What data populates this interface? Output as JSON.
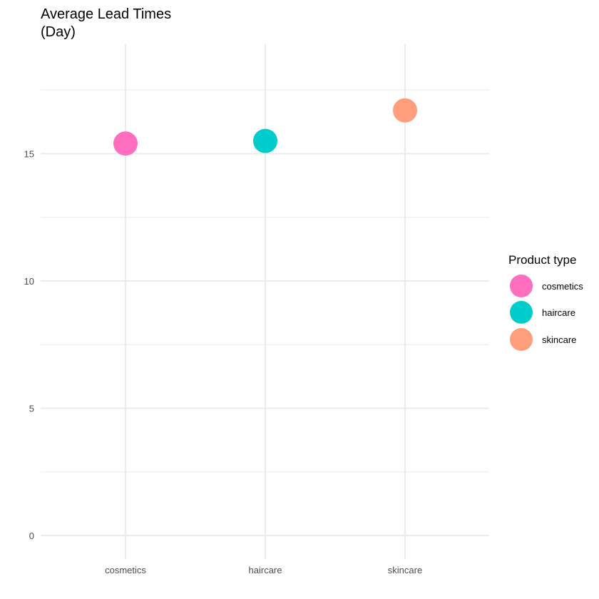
{
  "chart_data": {
    "type": "scatter",
    "title_lines": [
      "Average Lead Times",
      "(Day)"
    ],
    "xlabel": "",
    "ylabel": "",
    "categories": [
      "cosmetics",
      "haircare",
      "skincare"
    ],
    "values": [
      15.4,
      15.5,
      16.7
    ],
    "ylim": [
      -0.6,
      18.4
    ],
    "y_ticks": [
      0,
      5,
      10,
      15
    ],
    "grid": true,
    "legend": {
      "title": "Product type",
      "position": "right",
      "entries": [
        "cosmetics",
        "haircare",
        "skincare"
      ]
    },
    "colors": {
      "cosmetics": "#ff6ebe",
      "haircare": "#00cccc",
      "skincare": "#ff9e7a"
    }
  }
}
